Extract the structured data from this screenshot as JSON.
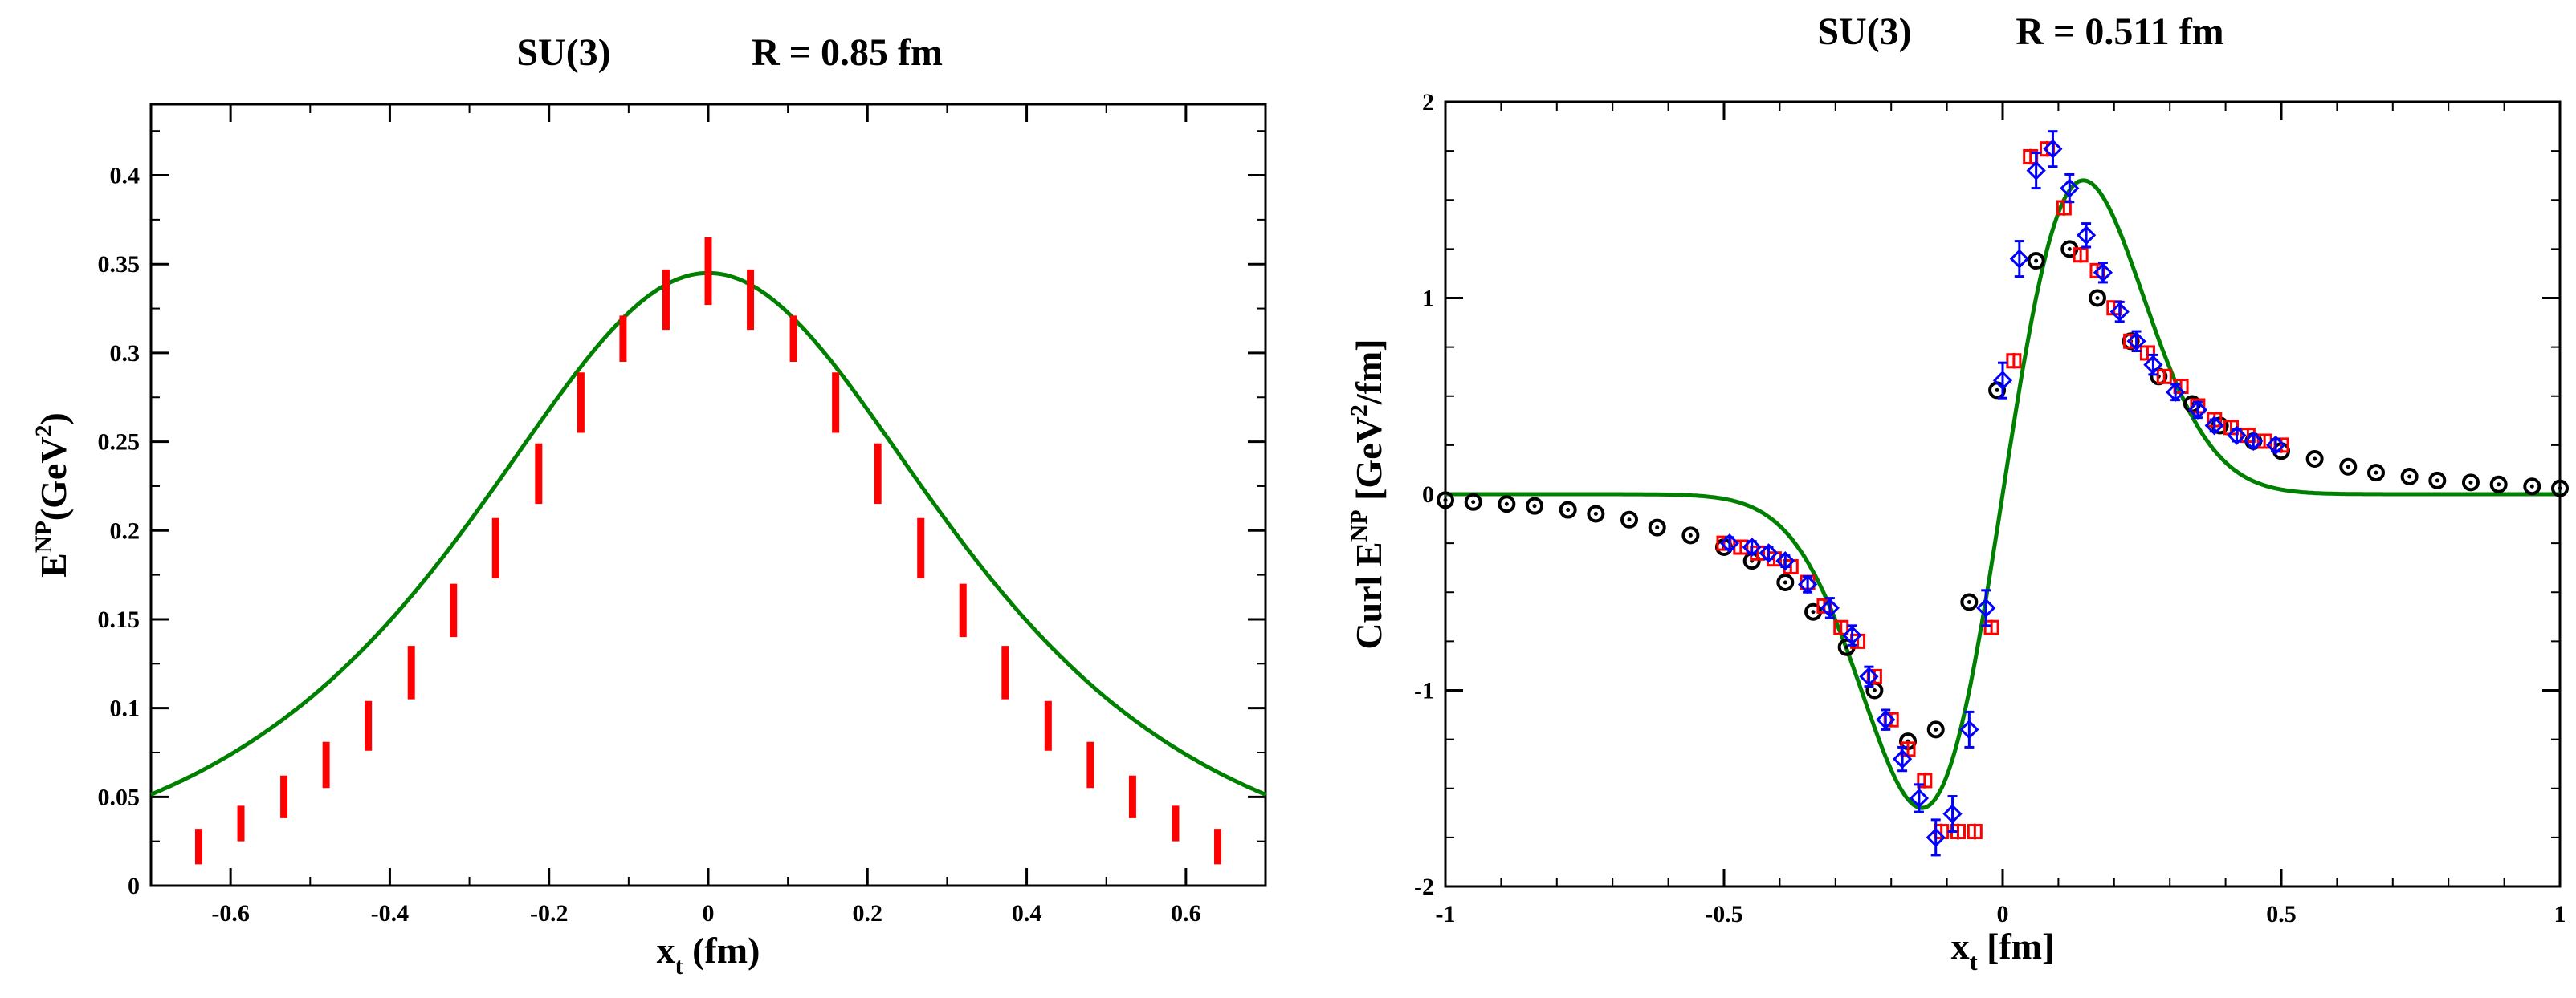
{
  "chart_data": [
    {
      "type": "scatter",
      "title_left": "SU(3)",
      "title_right": "R = 0.85 fm",
      "xlabel": "x",
      "xlabel_sub": "t",
      "xlabel_unit": " (fm)",
      "ylabel": "E",
      "ylabel_sup": "NP",
      "ylabel_unit": "(GeV",
      "ylabel_unit_sup": "2",
      "ylabel_end": ")",
      "xlim": [
        -0.7,
        0.7
      ],
      "ylim": [
        0,
        0.44
      ],
      "xticks": [
        -0.6,
        -0.4,
        -0.2,
        0,
        0.2,
        0.4,
        0.6
      ],
      "xtick_labels": [
        "-0.6",
        "-0.4",
        "-0.2",
        "0",
        "0.2",
        "0.4",
        "0.6"
      ],
      "yticks": [
        0,
        0.05,
        0.1,
        0.15,
        0.2,
        0.25,
        0.3,
        0.35,
        0.4
      ],
      "ytick_labels": [
        "0",
        "0.05",
        "0.1",
        "0.15",
        "0.2",
        "0.25",
        "0.3",
        "0.35",
        "0.4"
      ],
      "series": [
        {
          "name": "lattice data",
          "color": "#ff0000",
          "style": "errorbar",
          "x": [
            -0.64,
            -0.587,
            -0.533,
            -0.48,
            -0.427,
            -0.373,
            -0.32,
            -0.267,
            -0.213,
            -0.16,
            -0.107,
            -0.053,
            0,
            0.053,
            0.107,
            0.16,
            0.213,
            0.267,
            0.32,
            0.373,
            0.427,
            0.48,
            0.533,
            0.587,
            0.64
          ],
          "y": [
            0.022,
            0.035,
            0.05,
            0.068,
            0.09,
            0.12,
            0.155,
            0.19,
            0.232,
            0.272,
            0.308,
            0.33,
            0.346,
            0.33,
            0.308,
            0.272,
            0.232,
            0.19,
            0.155,
            0.12,
            0.09,
            0.068,
            0.05,
            0.035,
            0.022
          ],
          "err": [
            0.01,
            0.01,
            0.012,
            0.013,
            0.014,
            0.015,
            0.015,
            0.017,
            0.017,
            0.017,
            0.013,
            0.017,
            0.019,
            0.017,
            0.013,
            0.017,
            0.017,
            0.017,
            0.015,
            0.015,
            0.014,
            0.013,
            0.012,
            0.01,
            0.01
          ]
        },
        {
          "name": "fit",
          "color": "#008000",
          "style": "line",
          "model": "gaussian-cosh",
          "amplitude": 0.345,
          "sigma": 0.27
        }
      ]
    },
    {
      "type": "scatter",
      "title_left": "SU(3)",
      "title_right": "R = 0.511 fm",
      "xlabel": "x",
      "xlabel_sub": "t",
      "xlabel_unit": " [fm]",
      "ylabel": "Curl E",
      "ylabel_sup": "NP",
      "ylabel_unit": " [GeV",
      "ylabel_unit_sup": "2",
      "ylabel_end": "/fm]",
      "xlim": [
        -1,
        1
      ],
      "ylim": [
        -2,
        2
      ],
      "xticks": [
        -1,
        -0.5,
        0,
        0.5,
        1
      ],
      "xtick_labels": [
        "-1",
        "-0.5",
        "0",
        "0.5",
        "1"
      ],
      "yticks": [
        -2,
        -1,
        0,
        1,
        2
      ],
      "ytick_labels": [
        "-2",
        "-1",
        "0",
        "1",
        "2"
      ],
      "series": [
        {
          "name": "black circles",
          "color": "#000000",
          "style": "circle-dot",
          "x": [
            -1.0,
            -0.95,
            -0.89,
            -0.84,
            -0.78,
            -0.73,
            -0.67,
            -0.62,
            -0.56,
            -0.5,
            -0.45,
            -0.39,
            -0.34,
            -0.28,
            -0.23,
            -0.17,
            -0.12,
            -0.06,
            -0.01,
            0.06,
            0.12,
            0.17,
            0.23,
            0.28,
            0.34,
            0.39,
            0.45,
            0.5,
            0.56,
            0.62,
            0.67,
            0.73,
            0.78,
            0.84,
            0.89,
            0.95,
            1.0
          ],
          "y": [
            -0.03,
            -0.04,
            -0.05,
            -0.06,
            -0.08,
            -0.1,
            -0.13,
            -0.17,
            -0.21,
            -0.27,
            -0.34,
            -0.45,
            -0.6,
            -0.78,
            -1.0,
            -1.26,
            -1.2,
            -0.55,
            0.53,
            1.19,
            1.25,
            1.0,
            0.78,
            0.6,
            0.46,
            0.35,
            0.27,
            0.22,
            0.18,
            0.14,
            0.11,
            0.09,
            0.07,
            0.06,
            0.05,
            0.04,
            0.03
          ]
        },
        {
          "name": "red squares",
          "color": "#ff0000",
          "style": "square-err",
          "x": [
            -0.5,
            -0.47,
            -0.44,
            -0.41,
            -0.38,
            -0.35,
            -0.32,
            -0.29,
            -0.26,
            -0.23,
            -0.2,
            -0.17,
            -0.14,
            -0.11,
            -0.08,
            -0.05,
            -0.02,
            0.02,
            0.05,
            0.08,
            0.11,
            0.14,
            0.17,
            0.2,
            0.23,
            0.26,
            0.29,
            0.32,
            0.35,
            0.38,
            0.41,
            0.44,
            0.47,
            0.5
          ],
          "y": [
            -0.25,
            -0.27,
            -0.3,
            -0.33,
            -0.37,
            -0.45,
            -0.57,
            -0.68,
            -0.75,
            -0.93,
            -1.15,
            -1.3,
            -1.46,
            -1.72,
            -1.72,
            -1.72,
            -0.68,
            0.68,
            1.72,
            1.76,
            1.46,
            1.22,
            1.14,
            0.95,
            0.78,
            0.72,
            0.6,
            0.55,
            0.45,
            0.38,
            0.34,
            0.3,
            0.27,
            0.25
          ],
          "err": [
            0.03,
            0.03,
            0.03,
            0.03,
            0.03,
            0.03,
            0.03,
            0.03,
            0.03,
            0.03,
            0.03,
            0.04,
            0.04,
            0.04,
            0.04,
            0.04,
            0.04,
            0.04,
            0.04,
            0.04,
            0.04,
            0.04,
            0.03,
            0.03,
            0.03,
            0.03,
            0.03,
            0.03,
            0.03,
            0.03,
            0.03,
            0.03,
            0.03,
            0.03
          ]
        },
        {
          "name": "blue diamonds",
          "color": "#0000ff",
          "style": "diamond-err",
          "x": [
            -0.49,
            -0.45,
            -0.42,
            -0.39,
            -0.35,
            -0.31,
            -0.27,
            -0.24,
            -0.21,
            -0.18,
            -0.15,
            -0.12,
            -0.09,
            -0.06,
            -0.03,
            0.0,
            0.03,
            0.06,
            0.09,
            0.12,
            0.15,
            0.18,
            0.21,
            0.24,
            0.27,
            0.31,
            0.35,
            0.38,
            0.42,
            0.45,
            0.49
          ],
          "y": [
            -0.25,
            -0.27,
            -0.3,
            -0.34,
            -0.46,
            -0.58,
            -0.72,
            -0.93,
            -1.15,
            -1.35,
            -1.55,
            -1.75,
            -1.63,
            -1.2,
            -0.58,
            0.58,
            1.2,
            1.65,
            1.76,
            1.56,
            1.32,
            1.13,
            0.93,
            0.78,
            0.66,
            0.52,
            0.43,
            0.35,
            0.3,
            0.27,
            0.25
          ],
          "err": [
            0.03,
            0.03,
            0.03,
            0.03,
            0.04,
            0.05,
            0.05,
            0.05,
            0.05,
            0.06,
            0.07,
            0.09,
            0.09,
            0.09,
            0.09,
            0.09,
            0.09,
            0.09,
            0.09,
            0.07,
            0.06,
            0.05,
            0.05,
            0.05,
            0.05,
            0.04,
            0.04,
            0.03,
            0.03,
            0.03,
            0.03
          ]
        },
        {
          "name": "fit",
          "color": "#008000",
          "style": "line",
          "model": "derivative-of-gaussian",
          "amplitude": 1.6,
          "peak_x": 0.145
        }
      ]
    }
  ]
}
